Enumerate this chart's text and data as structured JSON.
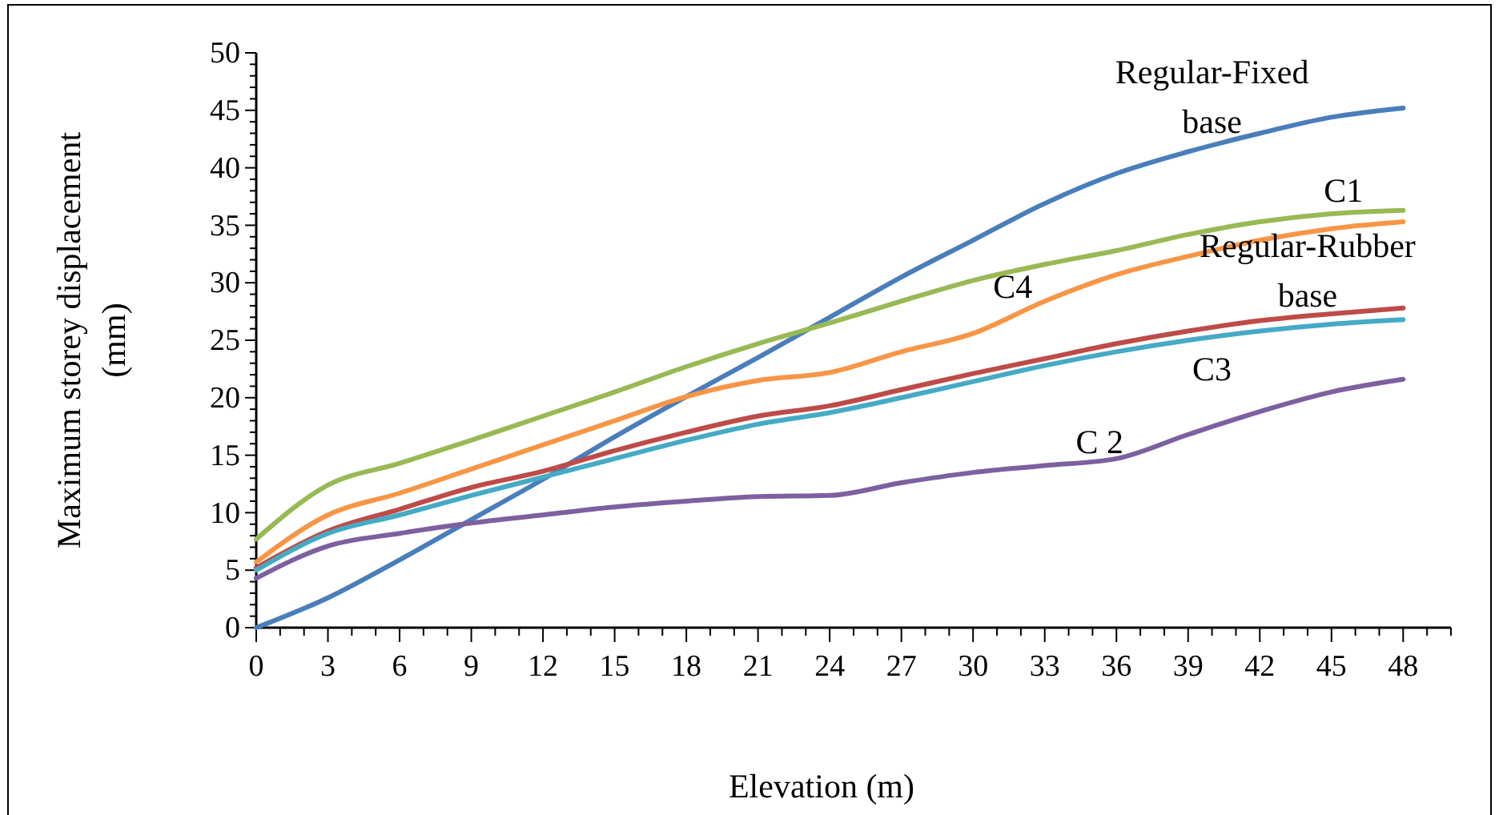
{
  "chart_data": {
    "type": "line",
    "xlabel": "Elevation (m)",
    "ylabel": "Maximum storey displacement\n(mm)",
    "x": [
      0,
      3,
      6,
      9,
      12,
      15,
      18,
      21,
      24,
      27,
      30,
      33,
      36,
      39,
      42,
      45,
      48
    ],
    "series": [
      {
        "name": "Regular-Fixed\nbase",
        "color": "#4a7ebb",
        "values": [
          0,
          2.6,
          5.9,
          9.4,
          12.9,
          16.6,
          20.1,
          23.5,
          27.0,
          30.5,
          33.7,
          36.9,
          39.5,
          41.4,
          43.0,
          44.4,
          45.2
        ]
      },
      {
        "name": "C1",
        "color": "#98b954",
        "values": [
          7.7,
          12.4,
          14.3,
          16.3,
          18.4,
          20.5,
          22.7,
          24.7,
          26.5,
          28.4,
          30.2,
          31.6,
          32.8,
          34.2,
          35.3,
          36.0,
          36.3
        ]
      },
      {
        "name": "C4",
        "color": "#f79646",
        "values": [
          5.7,
          9.8,
          11.7,
          13.8,
          15.9,
          18.0,
          20.1,
          21.5,
          22.2,
          24.0,
          25.6,
          28.4,
          30.7,
          32.3,
          33.7,
          34.7,
          35.3
        ]
      },
      {
        "name": "Regular-Rubber\nbase",
        "color": "#be4b48",
        "values": [
          5.2,
          8.4,
          10.3,
          12.2,
          13.6,
          15.4,
          17.0,
          18.4,
          19.3,
          20.7,
          22.1,
          23.4,
          24.7,
          25.8,
          26.7,
          27.3,
          27.8
        ]
      },
      {
        "name": "C3",
        "color": "#46aac5",
        "values": [
          5.0,
          8.2,
          9.8,
          11.5,
          13.1,
          14.7,
          16.3,
          17.7,
          18.7,
          20.0,
          21.4,
          22.8,
          24.0,
          25.0,
          25.8,
          26.4,
          26.8
        ]
      },
      {
        "name": "C 2",
        "color": "#7d60a0",
        "values": [
          4.3,
          7.1,
          8.2,
          9.1,
          9.8,
          10.5,
          11.0,
          11.4,
          11.5,
          12.6,
          13.5,
          14.1,
          14.7,
          16.8,
          18.8,
          20.5,
          21.6
        ]
      }
    ],
    "xlim": [
      0,
      50
    ],
    "xticks": [
      0,
      {
        "value": 1,
        "label": null
      },
      {
        "value": 2,
        "label": null
      },
      3,
      {
        "value": 4,
        "label": null
      },
      {
        "value": 5,
        "label": null
      },
      6,
      {
        "value": 7,
        "label": null
      },
      {
        "value": 8,
        "label": null
      },
      9,
      {
        "value": 10,
        "label": null
      },
      {
        "value": 11,
        "label": null
      },
      12,
      {
        "value": 13,
        "label": null
      },
      {
        "value": 14,
        "label": null
      },
      15,
      {
        "value": 16,
        "label": null
      },
      {
        "value": 17,
        "label": null
      },
      18,
      {
        "value": 19,
        "label": null
      },
      {
        "value": 20,
        "label": null
      },
      21,
      {
        "value": 22,
        "label": null
      },
      {
        "value": 23,
        "label": null
      },
      24,
      {
        "value": 25,
        "label": null
      },
      {
        "value": 26,
        "label": null
      },
      27,
      {
        "value": 28,
        "label": null
      },
      {
        "value": 29,
        "label": null
      },
      30,
      {
        "value": 31,
        "label": null
      },
      {
        "value": 32,
        "label": null
      },
      33,
      {
        "value": 34,
        "label": null
      },
      {
        "value": 35,
        "label": null
      },
      36,
      {
        "value": 37,
        "label": null
      },
      {
        "value": 38,
        "label": null
      },
      39,
      {
        "value": 40,
        "label": null
      },
      {
        "value": 41,
        "label": null
      },
      42,
      {
        "value": 43,
        "label": null
      },
      {
        "value": 44,
        "label": null
      },
      45,
      {
        "value": 46,
        "label": null
      },
      {
        "value": 47,
        "label": null
      },
      48,
      {
        "value": 49,
        "label": null
      },
      {
        "value": 50,
        "label": null
      }
    ],
    "ylim": [
      0,
      50
    ],
    "yticks": [
      0,
      {
        "value": 1,
        "label": null
      },
      {
        "value": 2,
        "label": null
      },
      {
        "value": 3,
        "label": null
      },
      {
        "value": 4,
        "label": null
      },
      5,
      {
        "value": 6,
        "label": null
      },
      {
        "value": 7,
        "label": null
      },
      {
        "value": 8,
        "label": null
      },
      {
        "value": 9,
        "label": null
      },
      10,
      {
        "value": 11,
        "label": null
      },
      {
        "value": 12,
        "label": null
      },
      {
        "value": 13,
        "label": null
      },
      {
        "value": 14,
        "label": null
      },
      15,
      {
        "value": 16,
        "label": null
      },
      {
        "value": 17,
        "label": null
      },
      {
        "value": 18,
        "label": null
      },
      {
        "value": 19,
        "label": null
      },
      20,
      {
        "value": 21,
        "label": null
      },
      {
        "value": 22,
        "label": null
      },
      {
        "value": 23,
        "label": null
      },
      {
        "value": 24,
        "label": null
      },
      25,
      {
        "value": 26,
        "label": null
      },
      {
        "value": 27,
        "label": null
      },
      {
        "value": 28,
        "label": null
      },
      {
        "value": 29,
        "label": null
      },
      30,
      {
        "value": 31,
        "label": null
      },
      {
        "value": 32,
        "label": null
      },
      {
        "value": 33,
        "label": null
      },
      {
        "value": 34,
        "label": null
      },
      35,
      {
        "value": 36,
        "label": null
      },
      {
        "value": 37,
        "label": null
      },
      {
        "value": 38,
        "label": null
      },
      {
        "value": 39,
        "label": null
      },
      40,
      {
        "value": 41,
        "label": null
      },
      {
        "value": 42,
        "label": null
      },
      {
        "value": 43,
        "label": null
      },
      {
        "value": 44,
        "label": null
      },
      45,
      {
        "value": 46,
        "label": null
      },
      {
        "value": 47,
        "label": null
      },
      {
        "value": 48,
        "label": null
      },
      {
        "value": 49,
        "label": null
      },
      50
    ],
    "grid": false,
    "marker": "none",
    "line_style": "solid"
  }
}
